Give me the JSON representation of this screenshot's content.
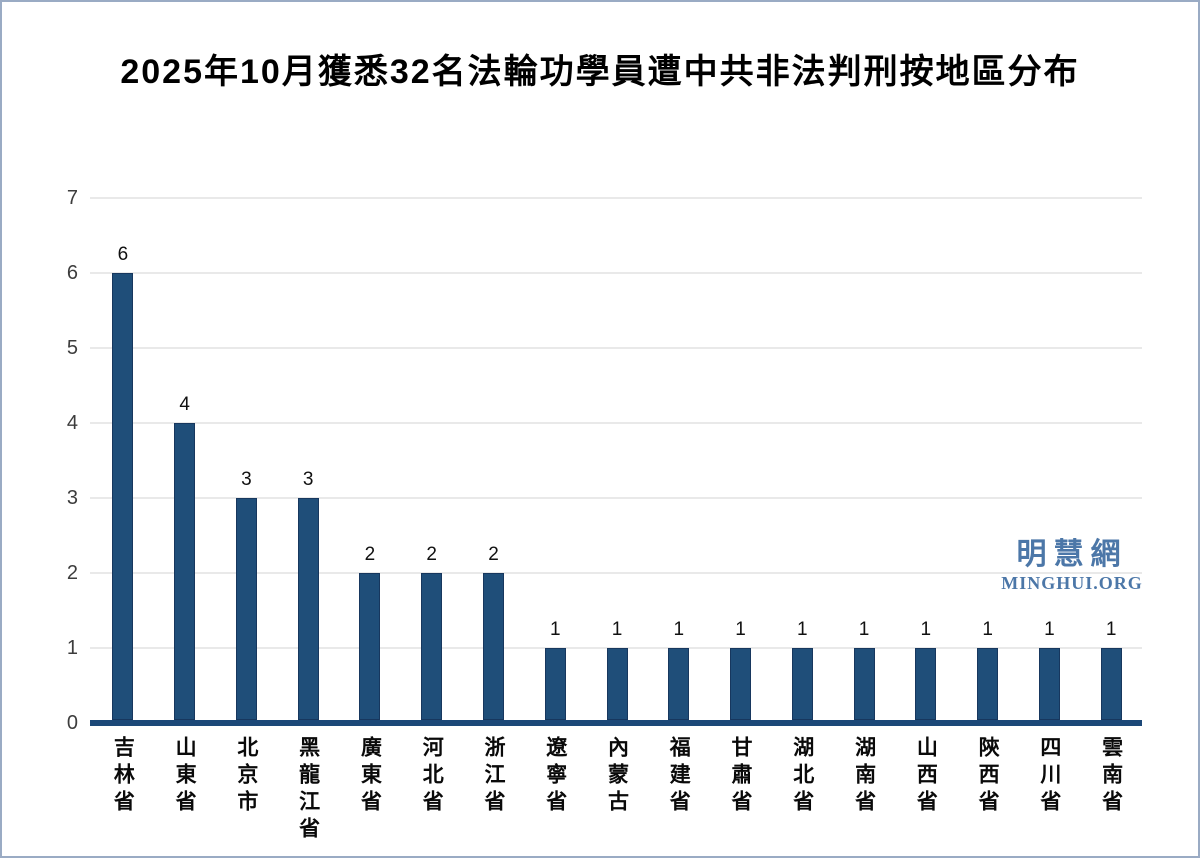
{
  "page": {
    "background": "#ffffff",
    "border_color": "#9aabc4"
  },
  "chart_data": {
    "type": "bar",
    "title": "2025年10月獲悉32名法輪功學員遭中共非法判刑按地區分布",
    "categories": [
      "吉林省",
      "山東省",
      "北京市",
      "黑龍江省",
      "廣東省",
      "河北省",
      "浙江省",
      "遼寧省",
      "內蒙古",
      "福建省",
      "甘肅省",
      "湖北省",
      "湖南省",
      "山西省",
      "陝西省",
      "四川省",
      "雲南省"
    ],
    "values": [
      6,
      4,
      3,
      3,
      2,
      2,
      2,
      1,
      1,
      1,
      1,
      1,
      1,
      1,
      1,
      1,
      1
    ],
    "total_mentioned_in_title": 32,
    "xlabel": "",
    "ylabel": "",
    "ylim": [
      0,
      7
    ],
    "yticks": [
      0,
      1,
      2,
      3,
      4,
      5,
      6,
      7
    ],
    "grid": true,
    "legend": "none",
    "value_labels_shown": true,
    "bar_color": "#1f4e79",
    "bar_border_color": "#17375e",
    "axis_line_color": "#1c4878",
    "gridline_color": "#e9e9e9",
    "tick_label_color": "#3d3d3d"
  },
  "watermark": {
    "cjk": "明慧網",
    "latin": "MINGHUI.ORG",
    "color": "#4c77a8"
  }
}
